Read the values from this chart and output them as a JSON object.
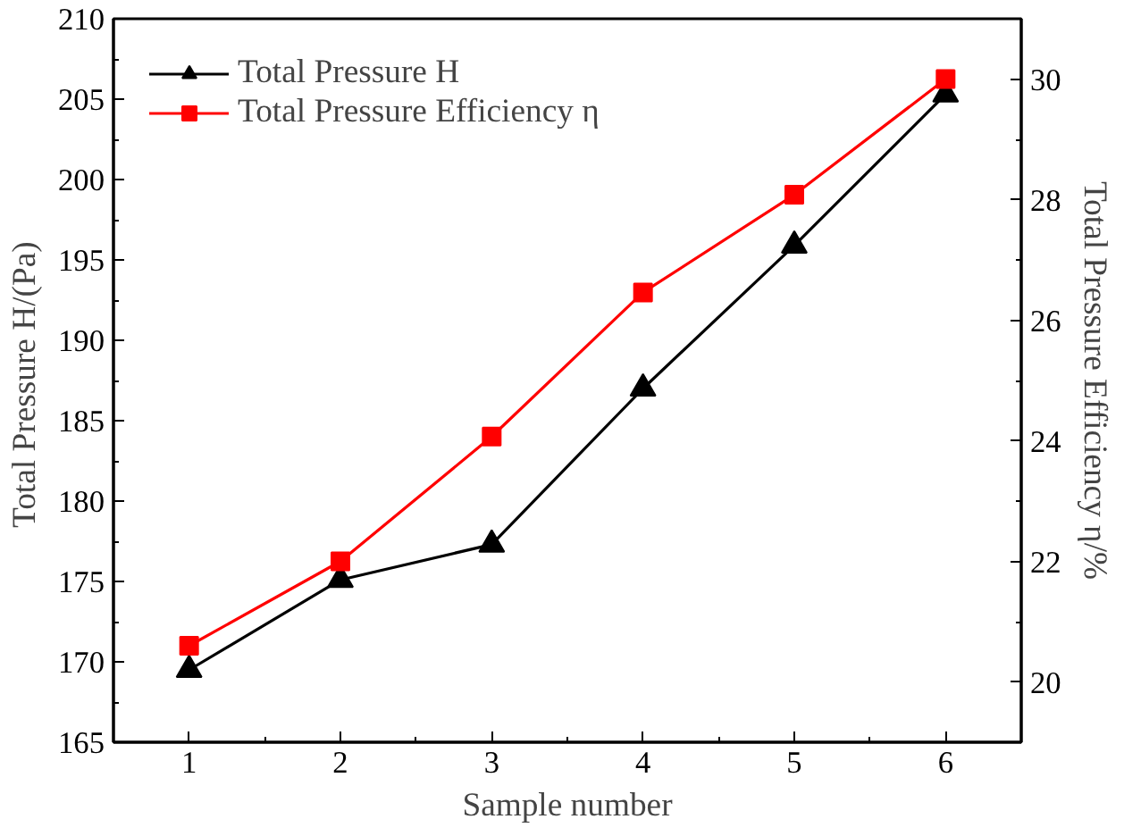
{
  "chart_data": {
    "type": "line",
    "xlabel": "Sample number",
    "ylabel": "Total Pressure  H/(Pa)",
    "y2label": "Total Pressure Efficiency η/%",
    "x": [
      1,
      2,
      3,
      4,
      5,
      6
    ],
    "series": [
      {
        "name": "Total Pressure H",
        "color": "#000000",
        "marker": "triangle",
        "values": [
          169.5,
          175.1,
          177.3,
          187.0,
          195.9,
          205.3
        ]
      },
      {
        "name": "Total Pressure Efficiency η",
        "color": "#ff0000",
        "marker": "square",
        "axis": "y2",
        "values": [
          20.6,
          22.0,
          24.07,
          26.46,
          28.08,
          30.0
        ]
      }
    ],
    "xlim": [
      0.5,
      6.5
    ],
    "xticks": [
      1,
      2,
      3,
      4,
      5,
      6
    ],
    "ylim": [
      165,
      210
    ],
    "yticks": [
      165,
      170,
      175,
      180,
      185,
      190,
      195,
      200,
      205,
      210
    ],
    "y2lim": [
      19,
      31
    ],
    "y2ticks": [
      20,
      22,
      24,
      26,
      28,
      30
    ],
    "grid": false,
    "legend": "top left",
    "line_style": "solid"
  }
}
